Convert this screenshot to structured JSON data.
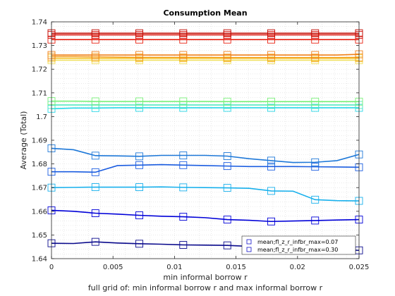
{
  "chart_data": {
    "type": "line",
    "title": "Consumption Mean",
    "xlabel": "min informal borrow r",
    "xlabel2": "full grid of: min informal borrow r and max informal borrow r",
    "ylabel": "Average (Total)",
    "xlim": [
      0,
      0.025
    ],
    "ylim": [
      1.64,
      1.74
    ],
    "xticks": [
      0,
      0.005,
      0.01,
      0.015,
      0.02,
      0.025
    ],
    "xtick_labels": [
      "0",
      "0.005",
      "0.01",
      "0.015",
      "0.02",
      "0.025"
    ],
    "yticks": [
      1.64,
      1.65,
      1.66,
      1.67,
      1.68,
      1.69,
      1.7,
      1.71,
      1.72,
      1.73,
      1.74
    ],
    "ytick_labels": [
      "1.64",
      "1.65",
      "1.66",
      "1.67",
      "1.68",
      "1.69",
      "1.7",
      "1.71",
      "1.72",
      "1.73",
      "1.74"
    ],
    "grid": "minor dotted",
    "legend_position": "bottom-right",
    "legend": [
      {
        "label": "mean;fl_z_r_infbr_max=0.07",
        "color": "#1212c8"
      },
      {
        "label": "mean;fl_z_r_infbr_max=0.30",
        "color": "#1212c8"
      }
    ],
    "x": [
      0,
      0.00179,
      0.00357,
      0.00536,
      0.00714,
      0.00893,
      0.01071,
      0.0125,
      0.01429,
      0.01607,
      0.01786,
      0.01964,
      0.02143,
      0.02321,
      0.025
    ],
    "series": [
      {
        "color": "#0a0a8c",
        "marker_every": 2,
        "values": [
          1.6465,
          1.6464,
          1.6471,
          1.6466,
          1.6463,
          1.6461,
          1.6458,
          1.6457,
          1.6456,
          1.6452,
          1.6449,
          1.6445,
          1.6441,
          1.6438,
          1.6435
        ]
      },
      {
        "color": "#0000d8",
        "marker_every": 2,
        "values": [
          1.6604,
          1.66,
          1.6592,
          1.6588,
          1.6583,
          1.6579,
          1.6577,
          1.6573,
          1.6565,
          1.6562,
          1.6557,
          1.6559,
          1.6561,
          1.6563,
          1.6565
        ]
      },
      {
        "color": "#1a5ce0",
        "marker_every": 2,
        "values": [
          1.6767,
          1.6767,
          1.6765,
          1.6793,
          1.6795,
          1.6797,
          1.6795,
          1.6793,
          1.6791,
          1.6789,
          1.6789,
          1.6789,
          1.6788,
          1.6787,
          1.6786
        ]
      },
      {
        "color": "#1e78d8",
        "marker_every": 2,
        "values": [
          1.6866,
          1.686,
          1.6835,
          1.6834,
          1.6832,
          1.6836,
          1.6836,
          1.6836,
          1.6833,
          1.6822,
          1.6814,
          1.6806,
          1.6807,
          1.6814,
          1.684
        ]
      },
      {
        "color": "#18b0ec",
        "marker_every": 2,
        "values": [
          1.67,
          1.6701,
          1.6702,
          1.6702,
          1.6702,
          1.6703,
          1.6701,
          1.67,
          1.6699,
          1.6697,
          1.6686,
          1.6685,
          1.6649,
          1.6645,
          1.6644
        ]
      },
      {
        "color": "#28d8e8",
        "marker_every": 2,
        "values": [
          1.7033,
          1.7036,
          1.7036,
          1.7037,
          1.7037,
          1.7037,
          1.7037,
          1.7037,
          1.7037,
          1.7037,
          1.7037,
          1.7037,
          1.7037,
          1.7037,
          1.7037
        ]
      },
      {
        "color": "#50e8c0",
        "marker_every": 2,
        "values": [
          1.7049,
          1.7049,
          1.7049,
          1.7049,
          1.7049,
          1.7049,
          1.7049,
          1.7049,
          1.7049,
          1.7049,
          1.7049,
          1.7049,
          1.7049,
          1.7049,
          1.7049
        ]
      },
      {
        "color": "#78f078",
        "marker_every": 2,
        "values": [
          1.7065,
          1.7065,
          1.7064,
          1.7064,
          1.7064,
          1.7064,
          1.7064,
          1.7064,
          1.7063,
          1.7063,
          1.7063,
          1.7063,
          1.7063,
          1.7063,
          1.7063
        ]
      },
      {
        "color": "#f0e060",
        "marker_every": 2,
        "values": [
          1.7238,
          1.7238,
          1.7238,
          1.7238,
          1.7238,
          1.7238,
          1.7238,
          1.7238,
          1.7238,
          1.7238,
          1.7238,
          1.7238,
          1.7238,
          1.7238,
          1.7238
        ]
      },
      {
        "color": "#f4c428",
        "marker_every": 2,
        "values": [
          1.7246,
          1.7246,
          1.7246,
          1.7246,
          1.7246,
          1.7246,
          1.7246,
          1.7246,
          1.7246,
          1.7246,
          1.7246,
          1.7246,
          1.7246,
          1.7246,
          1.7246
        ]
      },
      {
        "color": "#f4a020",
        "marker_every": 2,
        "values": [
          1.7253,
          1.7253,
          1.7252,
          1.7251,
          1.725,
          1.725,
          1.725,
          1.725,
          1.7249,
          1.7249,
          1.7249,
          1.7249,
          1.7249,
          1.7249,
          1.725
        ]
      },
      {
        "color": "#f08018",
        "marker_every": 2,
        "values": [
          1.726,
          1.726,
          1.726,
          1.726,
          1.726,
          1.726,
          1.726,
          1.726,
          1.726,
          1.726,
          1.726,
          1.726,
          1.726,
          1.726,
          1.7263
        ]
      },
      {
        "color": "#e82010",
        "marker_every": 2,
        "values": [
          1.7325,
          1.7325,
          1.7325,
          1.7325,
          1.7325,
          1.7325,
          1.7325,
          1.7325,
          1.7325,
          1.7325,
          1.7325,
          1.7325,
          1.7325,
          1.7325,
          1.7325
        ]
      },
      {
        "color": "#d81008",
        "marker_every": 2,
        "values": [
          1.7345,
          1.7345,
          1.7345,
          1.7345,
          1.7345,
          1.7345,
          1.7345,
          1.7345,
          1.7345,
          1.7345,
          1.7345,
          1.7345,
          1.7345,
          1.7345,
          1.7345
        ]
      },
      {
        "color": "#c00800",
        "marker_every": 2,
        "values": [
          1.7352,
          1.7352,
          1.7352,
          1.7352,
          1.7352,
          1.7352,
          1.7352,
          1.7352,
          1.7352,
          1.7352,
          1.7352,
          1.7352,
          1.7352,
          1.7352,
          1.7352
        ]
      }
    ]
  }
}
